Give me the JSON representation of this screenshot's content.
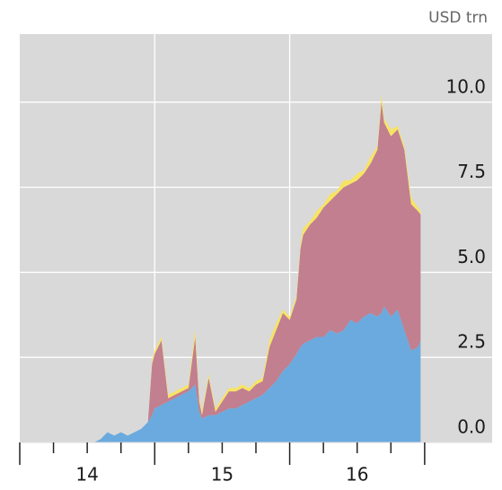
{
  "chart_data": {
    "type": "stacked_area",
    "y_label": "USD trn",
    "x": [
      2014.55,
      2014.6,
      2014.65,
      2014.7,
      2014.75,
      2014.8,
      2014.85,
      2014.9,
      2014.95,
      2014.98,
      2015.0,
      2015.05,
      2015.1,
      2015.15,
      2015.2,
      2015.25,
      2015.3,
      2015.33,
      2015.35,
      2015.4,
      2015.45,
      2015.5,
      2015.55,
      2015.6,
      2015.65,
      2015.7,
      2015.75,
      2015.8,
      2015.85,
      2015.9,
      2015.95,
      2016.0,
      2016.05,
      2016.08,
      2016.1,
      2016.15,
      2016.2,
      2016.25,
      2016.3,
      2016.35,
      2016.4,
      2016.45,
      2016.5,
      2016.55,
      2016.6,
      2016.65,
      2016.68,
      2016.7,
      2016.75,
      2016.8,
      2016.85,
      2016.9,
      2016.95,
      2016.97
    ],
    "series": [
      {
        "color": "#6aaadf",
        "values": [
          0,
          0.1,
          0.3,
          0.2,
          0.3,
          0.2,
          0.3,
          0.4,
          0.6,
          0.8,
          1.0,
          1.1,
          1.2,
          1.3,
          1.4,
          1.5,
          1.7,
          0.9,
          0.7,
          0.8,
          0.8,
          0.9,
          1.0,
          1.0,
          1.1,
          1.2,
          1.3,
          1.4,
          1.6,
          1.8,
          2.1,
          2.3,
          2.6,
          2.8,
          2.9,
          3.0,
          3.1,
          3.1,
          3.3,
          3.2,
          3.3,
          3.6,
          3.5,
          3.7,
          3.8,
          3.7,
          3.8,
          4.0,
          3.7,
          3.9,
          3.3,
          2.7,
          2.8,
          3.0
        ]
      },
      {
        "color": "#c17f8f",
        "values": [
          0,
          0,
          0,
          0,
          0,
          0,
          0,
          0,
          0,
          1.5,
          1.6,
          1.9,
          0.1,
          0.1,
          0.1,
          0.1,
          1.4,
          0.3,
          0.1,
          1.1,
          0.1,
          0.3,
          0.5,
          0.5,
          0.5,
          0.3,
          0.4,
          0.4,
          1.2,
          1.5,
          1.7,
          1.3,
          1.6,
          2.9,
          3.2,
          3.4,
          3.5,
          3.8,
          3.8,
          4.1,
          4.2,
          4.0,
          4.2,
          4.2,
          4.4,
          4.9,
          6.2,
          5.4,
          5.3,
          5.3,
          5.3,
          4.3,
          4.0,
          3.7
        ]
      },
      {
        "color": "#f7e463",
        "values": [
          0,
          0,
          0,
          0,
          0,
          0,
          0,
          0,
          0,
          0.1,
          0.1,
          0.1,
          0.1,
          0.1,
          0.1,
          0.1,
          0.2,
          0.1,
          0.1,
          0.1,
          0.1,
          0.1,
          0.1,
          0.1,
          0.1,
          0.1,
          0.1,
          0.1,
          0.2,
          0.2,
          0.1,
          0.1,
          0.1,
          0.1,
          0.2,
          0.1,
          0.2,
          0.1,
          0.2,
          0.1,
          0.2,
          0.1,
          0.2,
          0.1,
          0.2,
          0.1,
          0.2,
          0.1,
          0.2,
          0.1,
          0.1,
          0.2,
          0.1,
          0.1
        ]
      }
    ],
    "xlim": [
      2014,
      2017.5
    ],
    "ylim": [
      0,
      12
    ],
    "yticks": [
      {
        "value": 0,
        "label": "0.0"
      },
      2.5,
      {
        "value": 5,
        "label": "5.0"
      },
      7.5,
      {
        "value": 10,
        "label": "10.0"
      }
    ],
    "x_gridlines": [
      2015,
      2016
    ],
    "xticks_major": [
      2014,
      2015,
      2016,
      2017
    ],
    "xticks_minor": [
      2014.25,
      2014.5,
      2014.75,
      2015.25,
      2015.5,
      2015.75,
      2016.25,
      2016.5,
      2016.75
    ],
    "xtick_labels": [
      {
        "value": 2014.5,
        "label": "14"
      },
      {
        "value": 2015.5,
        "label": "15"
      },
      {
        "value": 2016.5,
        "label": "16"
      }
    ],
    "grid": true,
    "background": "#d9d9d9"
  }
}
